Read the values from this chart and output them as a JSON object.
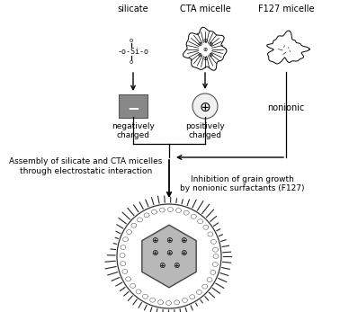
{
  "bg_color": "#ffffff",
  "labels": {
    "silicate": "silicate",
    "cta": "CTA micelle",
    "f127": "F127 micelle",
    "neg_charged": "negatively\ncharged",
    "pos_charged": "positively\ncharged",
    "nonionic": "nonionic",
    "assembly": "Assembly of silicate and CTA micelles\nthrough electrostatic interaction",
    "inhibition": "Inhibition of grain growth\nby nonionic surfactants (F127)"
  },
  "colors": {
    "box_neg": "#888888",
    "arrow": "#000000",
    "text": "#000000"
  }
}
